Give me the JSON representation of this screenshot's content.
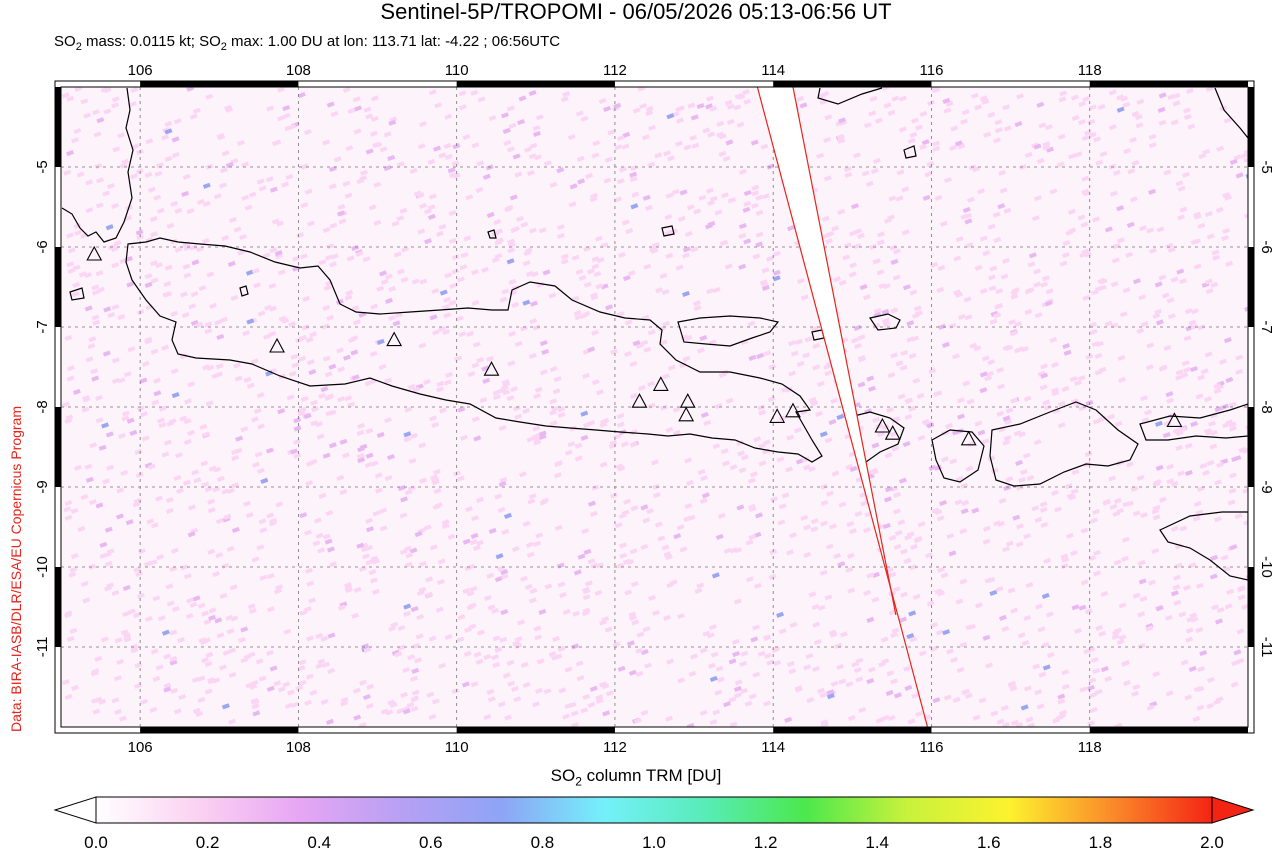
{
  "title": "Sentinel-5P/TROPOMI - 06/05/2026 05:13-06:56 UT",
  "subtitle": {
    "mass_prefix": "SO",
    "mass_sub": "2",
    "mass_text": " mass: 0.0115 kt; SO",
    "max_sub": "2",
    "max_text": " max: 1.00 DU at lon: 113.71 lat: -4.22 ; 06:56UTC"
  },
  "credit": "Data: BIRA-IASB/DLR/ESA/EU Copernicus Program",
  "map": {
    "lon_range": [
      105.0,
      120.0
    ],
    "lat_range": [
      -12.0,
      -4.0
    ],
    "lon_ticks": [
      "106",
      "108",
      "110",
      "112",
      "114",
      "116",
      "118"
    ],
    "lon_tick_values": [
      106,
      108,
      110,
      112,
      114,
      116,
      118
    ],
    "lat_ticks": [
      "-5",
      "-6",
      "-7",
      "-8",
      "-9",
      "-10",
      "-11"
    ],
    "lat_tick_values": [
      -5,
      -6,
      -7,
      -8,
      -9,
      -10,
      -11
    ],
    "volcanoes_lonlat": [
      [
        105.42,
        -6.1
      ],
      [
        107.73,
        -7.25
      ],
      [
        109.21,
        -7.17
      ],
      [
        110.44,
        -7.54
      ],
      [
        112.31,
        -7.94
      ],
      [
        112.58,
        -7.73
      ],
      [
        112.92,
        -7.94
      ],
      [
        112.9,
        -8.11
      ],
      [
        114.05,
        -8.13
      ],
      [
        114.25,
        -8.06
      ],
      [
        115.38,
        -8.25
      ],
      [
        115.51,
        -8.34
      ],
      [
        116.47,
        -8.41
      ],
      [
        119.07,
        -8.18
      ]
    ],
    "swath_edges_lonlat": [
      [
        [
          113.8,
          -4.0
        ],
        [
          115.95,
          -12.0
        ]
      ],
      [
        [
          114.25,
          -4.0
        ],
        [
          115.55,
          -10.6
        ]
      ]
    ],
    "colors": {
      "coast": "#000000",
      "swath_edge": "#e8231c",
      "noise_low": "#fbd6f4",
      "noise_mid": "#e9b8f2",
      "noise_high": "#9aa6f2"
    }
  },
  "colorbar": {
    "title_prefix": "SO",
    "title_sub": "2",
    "title_text": " column TRM [DU]",
    "ticks": [
      "0.0",
      "0.2",
      "0.4",
      "0.6",
      "0.8",
      "1.0",
      "1.2",
      "1.4",
      "1.6",
      "1.8",
      "2.0"
    ],
    "tick_values": [
      0.0,
      0.2,
      0.4,
      0.6,
      0.8,
      1.0,
      1.2,
      1.4,
      1.6,
      1.8,
      2.0
    ],
    "range": [
      0.0,
      2.0
    ],
    "stops": [
      "#ffffff",
      "#fbd2f2",
      "#e7a6f4",
      "#b7a0f4",
      "#8ea4f6",
      "#74f0fa",
      "#58ecb8",
      "#4ce84c",
      "#c8f23c",
      "#fcf22e",
      "#fb8c2a",
      "#f42414"
    ],
    "under_color": "#ffffff",
    "over_color": "#f42414"
  }
}
